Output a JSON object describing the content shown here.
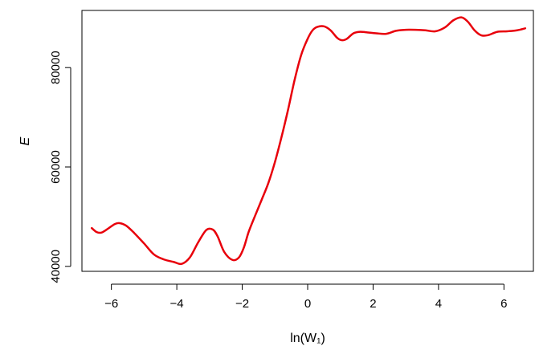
{
  "chart_data": {
    "type": "line",
    "xlabel": "ln(W₁)",
    "ylabel": "E",
    "xlim": [
      -6.9,
      6.9
    ],
    "ylim": [
      39000,
      91500
    ],
    "xticks": [
      -6,
      -4,
      -2,
      0,
      2,
      4,
      6
    ],
    "yticks": [
      40000,
      60000,
      80000
    ],
    "xtick_labels": [
      "−6",
      "−4",
      "−2",
      "0",
      "2",
      "4",
      "6"
    ],
    "ytick_labels": [
      "40000",
      "60000",
      "80000"
    ],
    "grid": false,
    "legend": "none",
    "series": [
      {
        "color": "#e8000b",
        "x": [
          -6.6,
          -6.45,
          -6.3,
          -6.1,
          -5.9,
          -5.75,
          -5.55,
          -5.3,
          -5.0,
          -4.7,
          -4.4,
          -4.1,
          -3.85,
          -3.6,
          -3.35,
          -3.1,
          -2.9,
          -2.75,
          -2.55,
          -2.3,
          -2.1,
          -1.95,
          -1.8,
          -1.6,
          -1.4,
          -1.2,
          -1.0,
          -0.8,
          -0.6,
          -0.4,
          -0.2,
          0.0,
          0.15,
          0.3,
          0.5,
          0.7,
          0.9,
          1.05,
          1.2,
          1.4,
          1.6,
          1.8,
          2.1,
          2.4,
          2.7,
          3.0,
          3.3,
          3.6,
          3.9,
          4.2,
          4.45,
          4.7,
          4.9,
          5.1,
          5.3,
          5.5,
          5.8,
          6.1,
          6.4,
          6.65
        ],
        "y": [
          47700,
          46900,
          46800,
          47600,
          48500,
          48700,
          48200,
          46700,
          44600,
          42400,
          41400,
          40900,
          40500,
          41800,
          44800,
          47300,
          47400,
          46000,
          42900,
          41300,
          41800,
          43800,
          47000,
          50300,
          53500,
          56800,
          61000,
          66000,
          71500,
          77500,
          82500,
          85800,
          87500,
          88200,
          88300,
          87500,
          86000,
          85500,
          85800,
          86900,
          87200,
          87100,
          86900,
          86800,
          87400,
          87600,
          87600,
          87500,
          87300,
          88100,
          89500,
          90100,
          89200,
          87500,
          86500,
          86500,
          87200,
          87300,
          87500,
          87900
        ]
      }
    ]
  }
}
